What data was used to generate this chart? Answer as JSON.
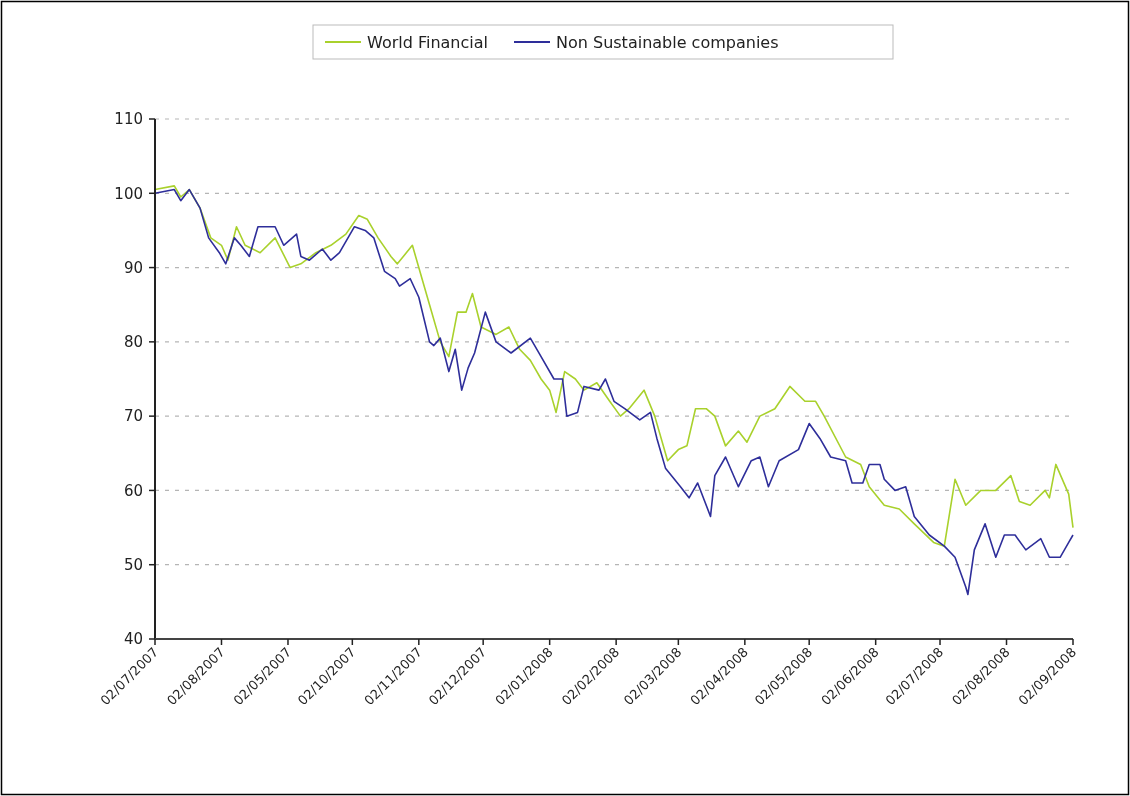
{
  "chart_data": {
    "type": "line",
    "legend": "top",
    "grid": "y",
    "marker": "none",
    "line_style": "solid",
    "ylim": [
      40,
      110
    ],
    "yticks": [
      40,
      50,
      60,
      70,
      80,
      90,
      100,
      110
    ],
    "xlim": [
      "2007-07-02",
      "2008-09-02"
    ],
    "xticks": [
      {
        "value": "2007-07-02",
        "label": "02/07/2007"
      },
      {
        "value": "2007-08-02",
        "label": "02/08/2007"
      },
      {
        "value": "2007-09-02",
        "label": "02/05/2007"
      },
      {
        "value": "2007-10-02",
        "label": "02/10/2007"
      },
      {
        "value": "2007-11-02",
        "label": "02/11/2007"
      },
      {
        "value": "2007-12-02",
        "label": "02/12/2007"
      },
      {
        "value": "2008-01-02",
        "label": "02/01/2008"
      },
      {
        "value": "2008-02-02",
        "label": "02/02/2008"
      },
      {
        "value": "2008-03-02",
        "label": "02/03/2008"
      },
      {
        "value": "2008-04-02",
        "label": "02/04/2008"
      },
      {
        "value": "2008-05-02",
        "label": "02/05/2008"
      },
      {
        "value": "2008-06-02",
        "label": "02/06/2008"
      },
      {
        "value": "2008-07-02",
        "label": "02/07/2008"
      },
      {
        "value": "2008-08-02",
        "label": "02/08/2008"
      },
      {
        "value": "2008-09-02",
        "label": "02/09/2008"
      }
    ],
    "series": [
      {
        "name": "World Financial",
        "color": "#a9d12c",
        "x": [
          "2007-07-02",
          "2007-07-11",
          "2007-07-14",
          "2007-07-18",
          "2007-07-23",
          "2007-07-28",
          "2007-08-02",
          "2007-08-05",
          "2007-08-09",
          "2007-08-13",
          "2007-08-20",
          "2007-08-27",
          "2007-09-03",
          "2007-09-08",
          "2007-09-15",
          "2007-09-22",
          "2007-09-29",
          "2007-10-05",
          "2007-10-09",
          "2007-10-14",
          "2007-10-20",
          "2007-10-23",
          "2007-10-30",
          "2007-11-04",
          "2007-11-07",
          "2007-11-12",
          "2007-11-16",
          "2007-11-20",
          "2007-11-24",
          "2007-11-27",
          "2007-12-01",
          "2007-12-08",
          "2007-12-14",
          "2007-12-19",
          "2007-12-24",
          "2007-12-29",
          "2008-01-02",
          "2008-01-05",
          "2008-01-09",
          "2008-01-14",
          "2008-01-18",
          "2008-01-24",
          "2008-01-30",
          "2008-02-04",
          "2008-02-08",
          "2008-02-15",
          "2008-02-20",
          "2008-02-26",
          "2008-03-02",
          "2008-03-06",
          "2008-03-10",
          "2008-03-15",
          "2008-03-19",
          "2008-03-24",
          "2008-03-30",
          "2008-04-03",
          "2008-04-09",
          "2008-04-16",
          "2008-04-23",
          "2008-04-30",
          "2008-05-05",
          "2008-05-09",
          "2008-05-19",
          "2008-05-26",
          "2008-05-30",
          "2008-06-06",
          "2008-06-13",
          "2008-06-20",
          "2008-06-29",
          "2008-07-04",
          "2008-07-09",
          "2008-07-14",
          "2008-07-21",
          "2008-07-28",
          "2008-08-04",
          "2008-08-08",
          "2008-08-13",
          "2008-08-20",
          "2008-08-22",
          "2008-08-25",
          "2008-08-31",
          "2008-09-02"
        ],
        "values": [
          100.5,
          101,
          99.5,
          100.5,
          98,
          94,
          93,
          91,
          95.5,
          93,
          92,
          94,
          90,
          90.5,
          92,
          93,
          94.5,
          97,
          96.5,
          94,
          91.5,
          90.5,
          93,
          88,
          85,
          80,
          78,
          84,
          84,
          86.5,
          82,
          81,
          82,
          79,
          77.5,
          75,
          73.5,
          70.5,
          76,
          75,
          73.5,
          74.5,
          72,
          70,
          71,
          73.5,
          70,
          64,
          65.5,
          66,
          71,
          71,
          70,
          66,
          68,
          66.5,
          70,
          71,
          74,
          72,
          72,
          70,
          64.5,
          63.5,
          60.5,
          58,
          57.5,
          55.5,
          53,
          52.5,
          61.5,
          58,
          60,
          60,
          62,
          58.5,
          58,
          60,
          59,
          63.5,
          59.5,
          55
        ]
      },
      {
        "name": "Non Sustainable companies",
        "color": "#2e2e9a",
        "x": [
          "2007-07-02",
          "2007-07-11",
          "2007-07-14",
          "2007-07-18",
          "2007-07-23",
          "2007-07-27",
          "2007-08-01",
          "2007-08-04",
          "2007-08-08",
          "2007-08-11",
          "2007-08-15",
          "2007-08-19",
          "2007-08-27",
          "2007-08-31",
          "2007-09-06",
          "2007-09-08",
          "2007-09-12",
          "2007-09-18",
          "2007-09-22",
          "2007-09-26",
          "2007-10-03",
          "2007-10-08",
          "2007-10-12",
          "2007-10-17",
          "2007-10-22",
          "2007-10-24",
          "2007-10-29",
          "2007-11-02",
          "2007-11-07",
          "2007-11-09",
          "2007-11-12",
          "2007-11-16",
          "2007-11-19",
          "2007-11-22",
          "2007-11-25",
          "2007-11-28",
          "2007-12-03",
          "2007-12-08",
          "2007-12-15",
          "2007-12-24",
          "2007-12-29",
          "2008-01-04",
          "2008-01-08",
          "2008-01-10",
          "2008-01-15",
          "2008-01-18",
          "2008-01-25",
          "2008-01-28",
          "2008-02-01",
          "2008-02-06",
          "2008-02-13",
          "2008-02-18",
          "2008-02-21",
          "2008-02-25",
          "2008-03-03",
          "2008-03-07",
          "2008-03-11",
          "2008-03-17",
          "2008-03-19",
          "2008-03-24",
          "2008-03-30",
          "2008-04-05",
          "2008-04-09",
          "2008-04-13",
          "2008-04-18",
          "2008-04-27",
          "2008-05-02",
          "2008-05-07",
          "2008-05-12",
          "2008-05-19",
          "2008-05-22",
          "2008-05-27",
          "2008-05-30",
          "2008-06-04",
          "2008-06-06",
          "2008-06-11",
          "2008-06-16",
          "2008-06-20",
          "2008-06-27",
          "2008-07-04",
          "2008-07-09",
          "2008-07-14",
          "2008-07-15",
          "2008-07-18",
          "2008-07-23",
          "2008-07-28",
          "2008-08-01",
          "2008-08-06",
          "2008-08-11",
          "2008-08-18",
          "2008-08-22",
          "2008-08-27",
          "2008-08-31",
          "2008-09-02"
        ],
        "values": [
          100,
          100.5,
          99,
          100.5,
          98,
          94,
          92,
          90.5,
          94,
          93,
          91.5,
          95.5,
          95.5,
          93,
          94.5,
          91.5,
          91,
          92.5,
          91,
          92,
          95.5,
          95,
          94,
          89.5,
          88.5,
          87.5,
          88.5,
          86,
          80,
          79.5,
          80.5,
          76,
          79,
          73.5,
          76.5,
          78.5,
          84,
          80,
          78.5,
          80.5,
          78,
          75,
          75,
          70,
          70.5,
          74,
          73.5,
          75,
          72,
          71,
          69.5,
          70.5,
          67,
          63,
          60.5,
          59,
          61,
          56.5,
          62,
          64.5,
          60.5,
          64,
          64.5,
          60.5,
          64,
          65.5,
          69,
          67,
          64.5,
          64,
          61,
          61,
          63.5,
          63.5,
          61.5,
          60,
          60.5,
          56.5,
          54,
          52.5,
          51,
          47,
          46,
          52,
          55.5,
          51,
          54,
          54,
          52,
          53.5,
          51,
          51,
          53,
          54
        ]
      }
    ]
  }
}
